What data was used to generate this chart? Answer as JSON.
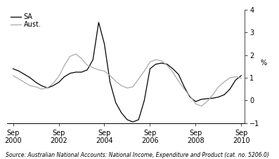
{
  "ylabel": "%",
  "source": "Source: Australian National Accounts: National Income, Expenditure and Product (cat. no. 5206.0)",
  "legend": [
    "SA",
    "Aust."
  ],
  "line_colors": [
    "#000000",
    "#aaaaaa"
  ],
  "ylim": [
    -1,
    4
  ],
  "yticks": [
    -1,
    0,
    1,
    2,
    3,
    4
  ],
  "xlim_start": 2000.5,
  "xlim_end": 2010.9,
  "xtick_labels": [
    "Sep\n2000",
    "Sep\n2002",
    "Sep\n2004",
    "Sep\n2006",
    "Sep\n2008",
    "Sep\n2010"
  ],
  "xtick_positions": [
    2000.75,
    2002.75,
    2004.75,
    2006.75,
    2008.75,
    2010.75
  ],
  "sa_x": [
    2000.75,
    2001.0,
    2001.25,
    2001.5,
    2001.75,
    2002.0,
    2002.25,
    2002.5,
    2002.75,
    2003.0,
    2003.25,
    2003.5,
    2003.75,
    2004.0,
    2004.25,
    2004.5,
    2004.75,
    2005.0,
    2005.25,
    2005.5,
    2005.75,
    2006.0,
    2006.25,
    2006.5,
    2006.75,
    2007.0,
    2007.25,
    2007.5,
    2007.75,
    2008.0,
    2008.25,
    2008.5,
    2008.75,
    2009.0,
    2009.25,
    2009.5,
    2009.75,
    2010.0,
    2010.25,
    2010.5,
    2010.75
  ],
  "sa_y": [
    1.4,
    1.3,
    1.15,
    1.0,
    0.8,
    0.65,
    0.55,
    0.65,
    0.8,
    1.05,
    1.2,
    1.25,
    1.25,
    1.35,
    1.8,
    3.45,
    2.5,
    0.8,
    -0.1,
    -0.55,
    -0.85,
    -0.95,
    -0.85,
    0.0,
    1.4,
    1.6,
    1.65,
    1.6,
    1.4,
    1.15,
    0.6,
    0.15,
    -0.05,
    0.05,
    0.08,
    0.1,
    0.15,
    0.25,
    0.5,
    0.9,
    1.1
  ],
  "aust_x": [
    2000.75,
    2001.0,
    2001.25,
    2001.5,
    2001.75,
    2002.0,
    2002.25,
    2002.5,
    2002.75,
    2003.0,
    2003.25,
    2003.5,
    2003.75,
    2004.0,
    2004.25,
    2004.5,
    2004.75,
    2005.0,
    2005.25,
    2005.5,
    2005.75,
    2006.0,
    2006.25,
    2006.5,
    2006.75,
    2007.0,
    2007.25,
    2007.5,
    2007.75,
    2008.0,
    2008.25,
    2008.5,
    2008.75,
    2009.0,
    2009.25,
    2009.5,
    2009.75,
    2010.0,
    2010.25,
    2010.5,
    2010.75
  ],
  "aust_y": [
    1.1,
    0.95,
    0.8,
    0.65,
    0.6,
    0.5,
    0.55,
    0.75,
    1.05,
    1.55,
    1.95,
    2.05,
    1.85,
    1.55,
    1.45,
    1.35,
    1.3,
    1.1,
    0.85,
    0.65,
    0.55,
    0.6,
    0.95,
    1.3,
    1.7,
    1.8,
    1.75,
    1.55,
    1.25,
    0.85,
    0.5,
    0.2,
    -0.15,
    -0.25,
    -0.05,
    0.25,
    0.6,
    0.82,
    1.0,
    1.05,
    0.98
  ],
  "background_color": "#ffffff",
  "font_size": 7,
  "source_font_size": 5.5
}
